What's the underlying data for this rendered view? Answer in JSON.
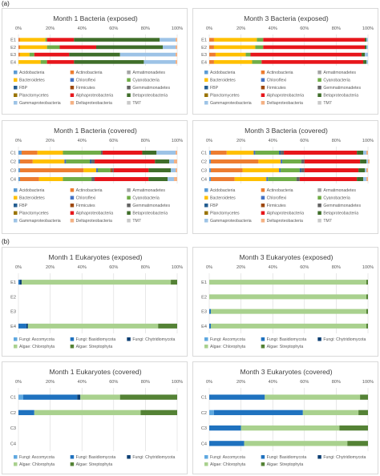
{
  "section_labels": [
    "(a)",
    "(b)"
  ],
  "colors": {
    "Acidobacteria": "#5b9bd5",
    "Actinobacteria": "#ed7d31",
    "Armatimonadetes": "#a5a5a5",
    "Bacteroidetes": "#ffc000",
    "Chloroflexi": "#4472c4",
    "Cyanobacteria": "#70ad47",
    "FBP": "#255e91",
    "Firmicutes": "#9e480e",
    "Gemmatimonadetes": "#636363",
    "Planctomycetes": "#997300",
    "Alphaproteobacteria": "#e7161b",
    "Betaproteobacteria": "#3f6e2a",
    "Gammaproteobacteria": "#9dc3e6",
    "Deltaproteobacteria": "#f4b183",
    "TM7": "#c9c9c9",
    "Fungi: Ascomycota": "#5fa8e0",
    "Fungi: Basidiomycota": "#1f72bf",
    "Fungi: Chytridiomycota": "#0d3f73",
    "Algae: Chlorophyta": "#a9d18e",
    "Algae: Streptophyta": "#548235"
  },
  "chart_data": [
    {
      "type": "bar",
      "orientation": "horizontal-stacked-percent",
      "title": "Month 1 Bacteria (exposed)",
      "categories": [
        "E1",
        "E2",
        "E3",
        "E4"
      ],
      "xlim": [
        0,
        100
      ],
      "xticks": [
        "0%",
        "20%",
        "40%",
        "60%",
        "80%",
        "100%"
      ],
      "legend_position": "bottom",
      "series": [
        {
          "name": "Acidobacteria",
          "values": [
            0,
            0,
            0,
            0
          ]
        },
        {
          "name": "Actinobacteria",
          "values": [
            1,
            1,
            1,
            0
          ]
        },
        {
          "name": "Armatimonadetes",
          "values": [
            0,
            0,
            0,
            0
          ]
        },
        {
          "name": "Bacteroidetes",
          "values": [
            16,
            17,
            6,
            14
          ]
        },
        {
          "name": "Chloroflexi",
          "values": [
            0,
            0,
            0,
            0
          ]
        },
        {
          "name": "Cyanobacteria",
          "values": [
            1,
            8,
            3,
            4
          ]
        },
        {
          "name": "FBP",
          "values": [
            0,
            0,
            0,
            0
          ]
        },
        {
          "name": "Firmicutes",
          "values": [
            0,
            0,
            0,
            0
          ]
        },
        {
          "name": "Gemmatimonadetes",
          "values": [
            0,
            0,
            0,
            0
          ]
        },
        {
          "name": "Planctomycetes",
          "values": [
            0,
            0,
            0,
            0
          ]
        },
        {
          "name": "Alphaproteobacteria",
          "values": [
            17,
            23,
            22,
            17
          ]
        },
        {
          "name": "Betaproteobacteria",
          "values": [
            54,
            42,
            32,
            44
          ]
        },
        {
          "name": "Gammaproteobacteria",
          "values": [
            10,
            8,
            35,
            20
          ]
        },
        {
          "name": "Deltaproteobacteria",
          "values": [
            1,
            1,
            1,
            1
          ]
        },
        {
          "name": "TM7",
          "values": [
            0,
            0,
            0,
            0
          ]
        }
      ]
    },
    {
      "type": "bar",
      "orientation": "horizontal-stacked-percent",
      "title": "Month  3 Bacteria (exposed)",
      "categories": [
        "E1",
        "E2",
        "E3",
        "E4"
      ],
      "xlim": [
        0,
        100
      ],
      "xticks": [
        "0%",
        "20%",
        "40%",
        "60%",
        "80%",
        "100%"
      ],
      "legend_position": "bottom",
      "series": [
        {
          "name": "Acidobacteria",
          "values": [
            0,
            0,
            0,
            0
          ]
        },
        {
          "name": "Actinobacteria",
          "values": [
            3,
            3,
            4,
            3
          ]
        },
        {
          "name": "Armatimonadetes",
          "values": [
            0,
            0,
            0,
            0
          ]
        },
        {
          "name": "Bacteroidetes",
          "values": [
            27,
            26,
            19,
            24
          ]
        },
        {
          "name": "Chloroflexi",
          "values": [
            0,
            0,
            0,
            0
          ]
        },
        {
          "name": "Cyanobacteria",
          "values": [
            4,
            5,
            3,
            6
          ]
        },
        {
          "name": "FBP",
          "values": [
            0,
            0,
            0,
            0
          ]
        },
        {
          "name": "Firmicutes",
          "values": [
            0,
            0,
            0,
            0
          ]
        },
        {
          "name": "Gemmatimonadetes",
          "values": [
            0,
            0,
            0,
            0
          ]
        },
        {
          "name": "Planctomycetes",
          "values": [
            0,
            0,
            0,
            0
          ]
        },
        {
          "name": "Alphaproteobacteria",
          "values": [
            64,
            64,
            70,
            64
          ]
        },
        {
          "name": "Betaproteobacteria",
          "values": [
            1,
            1,
            2,
            2
          ]
        },
        {
          "name": "Gammaproteobacteria",
          "values": [
            1,
            1,
            2,
            1
          ]
        },
        {
          "name": "Deltaproteobacteria",
          "values": [
            0,
            0,
            0,
            0
          ]
        },
        {
          "name": "TM7",
          "values": [
            0,
            0,
            0,
            0
          ]
        }
      ]
    },
    {
      "type": "bar",
      "orientation": "horizontal-stacked-percent",
      "title": "Month 1 Bacteria (covered)",
      "categories": [
        "C1",
        "C2",
        "C3",
        "C4"
      ],
      "xlim": [
        0,
        100
      ],
      "xticks": [
        "0%",
        "20%",
        "40%",
        "60%",
        "80%",
        "100%"
      ],
      "legend_position": "bottom",
      "series": [
        {
          "name": "Acidobacteria",
          "values": [
            2,
            1,
            1,
            1
          ]
        },
        {
          "name": "Actinobacteria",
          "values": [
            10,
            8,
            40,
            12
          ]
        },
        {
          "name": "Armatimonadetes",
          "values": [
            0,
            0,
            0,
            0
          ]
        },
        {
          "name": "Bacteroidetes",
          "values": [
            16,
            20,
            8,
            15
          ]
        },
        {
          "name": "Chloroflexi",
          "values": [
            0,
            1,
            1,
            0
          ]
        },
        {
          "name": "Cyanobacteria",
          "values": [
            24,
            15,
            8,
            18
          ]
        },
        {
          "name": "FBP",
          "values": [
            0,
            1,
            0,
            0
          ]
        },
        {
          "name": "Firmicutes",
          "values": [
            0,
            0,
            1,
            0
          ]
        },
        {
          "name": "Gemmatimonadetes",
          "values": [
            1,
            2,
            1,
            2
          ]
        },
        {
          "name": "Planctomycetes",
          "values": [
            0,
            0,
            0,
            0
          ]
        },
        {
          "name": "Alphaproteobacteria",
          "values": [
            25,
            38,
            22,
            34
          ]
        },
        {
          "name": "Betaproteobacteria",
          "values": [
            9,
            9,
            14,
            12
          ]
        },
        {
          "name": "Gammaproteobacteria",
          "values": [
            12,
            3,
            3,
            4
          ]
        },
        {
          "name": "Deltaproteobacteria",
          "values": [
            1,
            2,
            1,
            2
          ]
        },
        {
          "name": "TM7",
          "values": [
            0,
            0,
            0,
            0
          ]
        }
      ]
    },
    {
      "type": "bar",
      "orientation": "horizontal-stacked-percent",
      "title": "Month 3 Bacteria (covered)",
      "categories": [
        "C1",
        "C2",
        "C3",
        "C4"
      ],
      "xlim": [
        0,
        100
      ],
      "xticks": [
        "0%",
        "20%",
        "40%",
        "60%",
        "80%",
        "100%"
      ],
      "legend_position": "bottom",
      "series": [
        {
          "name": "Acidobacteria",
          "values": [
            1,
            1,
            1,
            1
          ]
        },
        {
          "name": "Actinobacteria",
          "values": [
            10,
            30,
            20,
            15
          ]
        },
        {
          "name": "Armatimonadetes",
          "values": [
            0,
            0,
            0,
            0
          ]
        },
        {
          "name": "Bacteroidetes",
          "values": [
            17,
            14,
            23,
            20
          ]
        },
        {
          "name": "Chloroflexi",
          "values": [
            1,
            1,
            1,
            1
          ]
        },
        {
          "name": "Cyanobacteria",
          "values": [
            15,
            12,
            12,
            18
          ]
        },
        {
          "name": "FBP",
          "values": [
            1,
            0,
            1,
            0
          ]
        },
        {
          "name": "Firmicutes",
          "values": [
            0,
            0,
            0,
            0
          ]
        },
        {
          "name": "Gemmatimonadetes",
          "values": [
            2,
            2,
            2,
            2
          ]
        },
        {
          "name": "Planctomycetes",
          "values": [
            0,
            0,
            0,
            0
          ]
        },
        {
          "name": "Alphaproteobacteria",
          "values": [
            46,
            35,
            34,
            36
          ]
        },
        {
          "name": "Betaproteobacteria",
          "values": [
            4,
            4,
            4,
            4
          ]
        },
        {
          "name": "Gammaproteobacteria",
          "values": [
            2,
            1,
            1,
            2
          ]
        },
        {
          "name": "Deltaproteobacteria",
          "values": [
            1,
            1,
            1,
            1
          ]
        },
        {
          "name": "TM7",
          "values": [
            0,
            0,
            0,
            0
          ]
        }
      ]
    },
    {
      "type": "bar",
      "orientation": "horizontal-stacked-percent",
      "title": "Month 1 Eukaryotes (exposed)",
      "categories": [
        "E1",
        "E2",
        "E3",
        "E4"
      ],
      "xlim": [
        0,
        100
      ],
      "xticks": [
        "0%",
        "20%",
        "40%",
        "60%",
        "80%",
        "100%"
      ],
      "legend_position": "bottom",
      "series": [
        {
          "name": "Fungi: Ascomycota",
          "values": [
            0,
            0,
            0,
            0
          ]
        },
        {
          "name": "Fungi: Basidiomycota",
          "values": [
            1,
            0,
            0,
            5
          ]
        },
        {
          "name": "Fungi: Chytridiomycota",
          "values": [
            1,
            0,
            0,
            1
          ]
        },
        {
          "name": "Algae: Chlorophyta",
          "values": [
            94,
            0,
            0,
            82
          ]
        },
        {
          "name": "Algae: Streptophyta",
          "values": [
            4,
            0,
            0,
            12
          ]
        }
      ]
    },
    {
      "type": "bar",
      "orientation": "horizontal-stacked-percent",
      "title": "Month 3 Eukaryotes (exposed)",
      "categories": [
        "E1",
        "E2",
        "E3",
        "E4"
      ],
      "xlim": [
        0,
        100
      ],
      "xticks": [
        "0%",
        "20%",
        "40%",
        "60%",
        "80%",
        "100%"
      ],
      "legend_position": "bottom",
      "series": [
        {
          "name": "Fungi: Ascomycota",
          "values": [
            0,
            0,
            0,
            0
          ]
        },
        {
          "name": "Fungi: Basidiomycota",
          "values": [
            0,
            0,
            1,
            1
          ]
        },
        {
          "name": "Fungi: Chytridiomycota",
          "values": [
            0,
            0,
            0,
            0
          ]
        },
        {
          "name": "Algae: Chlorophyta",
          "values": [
            99,
            99,
            98,
            98
          ]
        },
        {
          "name": "Algae: Streptophyta",
          "values": [
            1,
            1,
            1,
            1
          ]
        }
      ]
    },
    {
      "type": "bar",
      "orientation": "horizontal-stacked-percent",
      "title": "Month 1 Eukaryotes (covered)",
      "categories": [
        "C1",
        "C2",
        "C3",
        "C4"
      ],
      "xlim": [
        0,
        100
      ],
      "xticks": [
        "0%",
        "20%",
        "40%",
        "60%",
        "80%",
        "100%"
      ],
      "legend_position": "bottom",
      "series": [
        {
          "name": "Fungi: Ascomycota",
          "values": [
            3,
            0,
            0,
            0
          ]
        },
        {
          "name": "Fungi: Basidiomycota",
          "values": [
            34,
            10,
            0,
            0
          ]
        },
        {
          "name": "Fungi: Chytridiomycota",
          "values": [
            2,
            0,
            0,
            0
          ]
        },
        {
          "name": "Algae: Chlorophyta",
          "values": [
            25,
            67,
            0,
            0
          ]
        },
        {
          "name": "Algae: Streptophyta",
          "values": [
            36,
            23,
            0,
            0
          ]
        }
      ]
    },
    {
      "type": "bar",
      "orientation": "horizontal-stacked-percent",
      "title": "Month 3 Eukaryotes (covered)",
      "categories": [
        "C1",
        "C2",
        "C3",
        "C4"
      ],
      "xlim": [
        0,
        100
      ],
      "xticks": [
        "0%",
        "20%",
        "40%",
        "60%",
        "80%",
        "100%"
      ],
      "legend_position": "bottom",
      "series": [
        {
          "name": "Fungi: Ascomycota",
          "values": [
            0,
            3,
            0,
            0
          ]
        },
        {
          "name": "Fungi: Basidiomycota",
          "values": [
            35,
            56,
            20,
            22
          ]
        },
        {
          "name": "Fungi: Chytridiomycota",
          "values": [
            0,
            0,
            0,
            0
          ]
        },
        {
          "name": "Algae: Chlorophyta",
          "values": [
            60,
            35,
            62,
            65
          ]
        },
        {
          "name": "Algae: Streptophyta",
          "values": [
            5,
            6,
            18,
            13
          ]
        }
      ]
    }
  ]
}
